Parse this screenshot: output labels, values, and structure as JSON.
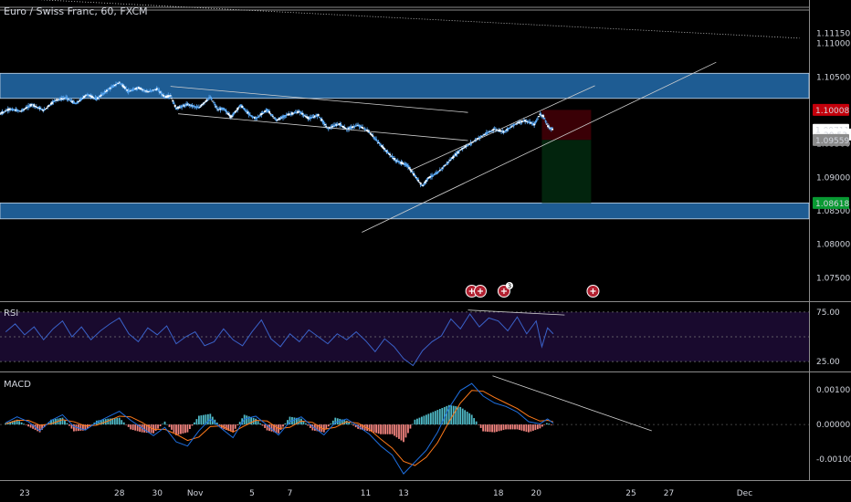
{
  "header": {
    "title": "Euro / Swiss Franc, 60, FXCM"
  },
  "colors": {
    "background": "#000000",
    "zone": "#1e5c93",
    "candle": "#5aa9f5",
    "rsi_line": "#3a62c9",
    "rsi_band": "#190a2e",
    "macd_line": "#1e6fe0",
    "signal_line": "#ff7a1a",
    "hist_pos": "#4fb9c6",
    "hist_neg": "#f0837e",
    "stop_zone": "#3a0006",
    "target_zone": "#02240d",
    "red_tag": "#c4000b",
    "green_tag": "#089932"
  },
  "price_tags": [
    {
      "label": "1.10008",
      "style": "red",
      "price": 1.10008
    },
    {
      "label": "1.09711",
      "style": "white",
      "price": 1.09711
    },
    {
      "label": "20:53",
      "style": "timer",
      "price": 1.0964
    },
    {
      "label": "1.09559",
      "style": "gray",
      "price": 1.09559
    },
    {
      "label": "1.08618",
      "style": "green",
      "price": 1.08618
    }
  ],
  "event_icons": [
    {
      "name": "event-flag-icon-1",
      "x": 19.6,
      "badge": ""
    },
    {
      "name": "event-flag-icon-2",
      "x": 20.05,
      "badge": ""
    },
    {
      "name": "event-flag-icon-3",
      "x": 21.3,
      "badge": "3"
    },
    {
      "name": "event-flag-icon-4",
      "x": 26.0,
      "badge": ""
    }
  ],
  "panes": {
    "rsi_label": "RSI",
    "macd_label": "MACD"
  },
  "chart_data": {
    "type": "candlestick",
    "symbol": "Euro / Swiss Franc",
    "interval": "60",
    "source": "FXCM",
    "price_ylim": [
      1.0715,
      1.1165
    ],
    "price_ticks": [
      "1.11150",
      "1.11000",
      "1.10500",
      "1.09500",
      "1.09000",
      "1.08500",
      "1.08000",
      "1.07500"
    ],
    "rsi_ticks": [
      "75.00",
      "25.00"
    ],
    "rsi_ylim": [
      15,
      85
    ],
    "macd_ticks": [
      "0.00100",
      "0.00000",
      "-0.00100"
    ],
    "macd_ylim": [
      -0.0016,
      0.0015
    ],
    "x_ticks": [
      "23",
      "28",
      "30",
      "Nov",
      "5",
      "7",
      "11",
      "13",
      "18",
      "20",
      "25",
      "27",
      "Dec"
    ],
    "x_tick_positions": [
      -4,
      1,
      3,
      5,
      8,
      10,
      14,
      16,
      21,
      23,
      28,
      30,
      34
    ],
    "x_range": [
      -5.3,
      37.4
    ],
    "resistance_zone": [
      1.1018,
      1.10555
    ],
    "support_zone": [
      1.0838,
      1.08618
    ],
    "position_box": {
      "x_start": 23.3,
      "x_end": 25.9,
      "entry": 1.09559,
      "stop": 1.10008,
      "target": 1.08618
    },
    "rsi_series": [
      [
        -5.0,
        55
      ],
      [
        -4.5,
        63
      ],
      [
        -4.0,
        52
      ],
      [
        -3.5,
        60
      ],
      [
        -3.0,
        47
      ],
      [
        -2.5,
        58
      ],
      [
        -2.0,
        66
      ],
      [
        -1.5,
        50
      ],
      [
        -1.0,
        60
      ],
      [
        -0.5,
        47
      ],
      [
        0.0,
        56
      ],
      [
        0.5,
        63
      ],
      [
        1.0,
        69
      ],
      [
        1.5,
        53
      ],
      [
        2.0,
        45
      ],
      [
        2.5,
        59
      ],
      [
        3.0,
        52
      ],
      [
        3.5,
        61
      ],
      [
        4.0,
        43
      ],
      [
        4.5,
        50
      ],
      [
        5.0,
        55
      ],
      [
        5.5,
        41
      ],
      [
        6.0,
        45
      ],
      [
        6.5,
        58
      ],
      [
        7.0,
        47
      ],
      [
        7.5,
        41
      ],
      [
        8.0,
        55
      ],
      [
        8.5,
        67
      ],
      [
        9.0,
        48
      ],
      [
        9.5,
        40
      ],
      [
        10.0,
        53
      ],
      [
        10.5,
        45
      ],
      [
        11.0,
        57
      ],
      [
        11.5,
        50
      ],
      [
        12.0,
        43
      ],
      [
        12.5,
        53
      ],
      [
        13.0,
        47
      ],
      [
        13.5,
        55
      ],
      [
        14.0,
        46
      ],
      [
        14.5,
        35
      ],
      [
        15.0,
        48
      ],
      [
        15.5,
        40
      ],
      [
        16.0,
        28
      ],
      [
        16.5,
        21
      ],
      [
        17.0,
        36
      ],
      [
        17.5,
        45
      ],
      [
        18.0,
        51
      ],
      [
        18.5,
        68
      ],
      [
        19.0,
        58
      ],
      [
        19.5,
        73
      ],
      [
        20.0,
        60
      ],
      [
        20.5,
        69
      ],
      [
        21.0,
        66
      ],
      [
        21.5,
        56
      ],
      [
        22.0,
        70
      ],
      [
        22.5,
        53
      ],
      [
        23.0,
        66
      ],
      [
        23.3,
        40
      ],
      [
        23.6,
        59
      ],
      [
        23.9,
        53
      ]
    ],
    "macd_series": [
      [
        -5.0,
        5e-05
      ],
      [
        -4.4,
        0.00022
      ],
      [
        -3.8,
        8e-05
      ],
      [
        -3.2,
        -0.00018
      ],
      [
        -2.6,
        0.00012
      ],
      [
        -2.0,
        0.00028
      ],
      [
        -1.4,
        -6e-05
      ],
      [
        -0.8,
        -0.00016
      ],
      [
        -0.2,
        6e-05
      ],
      [
        0.4,
        0.00022
      ],
      [
        1.0,
        0.00038
      ],
      [
        1.6,
        0.00012
      ],
      [
        2.2,
        -0.0001
      ],
      [
        2.8,
        -0.00032
      ],
      [
        3.4,
        -8e-05
      ],
      [
        4.0,
        -0.0005
      ],
      [
        4.6,
        -0.00062
      ],
      [
        5.2,
        -0.00018
      ],
      [
        5.8,
        0.00016
      ],
      [
        6.4,
        -0.00012
      ],
      [
        7.0,
        -0.00038
      ],
      [
        7.6,
        0.00016
      ],
      [
        8.2,
        0.00024
      ],
      [
        8.8,
        -2e-05
      ],
      [
        9.4,
        -0.0003
      ],
      [
        10.0,
        8e-05
      ],
      [
        10.6,
        0.00022
      ],
      [
        11.2,
        -6e-05
      ],
      [
        11.8,
        -0.0003
      ],
      [
        12.4,
        6e-05
      ],
      [
        13.0,
        0.00016
      ],
      [
        13.6,
        -5e-05
      ],
      [
        14.2,
        -0.00028
      ],
      [
        14.8,
        -0.00062
      ],
      [
        15.4,
        -0.00088
      ],
      [
        16.0,
        -0.00142
      ],
      [
        16.6,
        -0.00108
      ],
      [
        17.2,
        -0.00074
      ],
      [
        17.8,
        -0.00022
      ],
      [
        18.4,
        0.00048
      ],
      [
        19.0,
        0.00098
      ],
      [
        19.6,
        0.00118
      ],
      [
        20.2,
        0.00082
      ],
      [
        20.8,
        0.00062
      ],
      [
        21.4,
        0.00052
      ],
      [
        22.0,
        0.00036
      ],
      [
        22.6,
        8e-05
      ],
      [
        23.2,
        2e-05
      ],
      [
        23.6,
        0.00016
      ],
      [
        23.9,
        4e-05
      ]
    ],
    "signal_series": [
      [
        -5.0,
        2e-05
      ],
      [
        -4.4,
        0.00012
      ],
      [
        -3.8,
        0.00012
      ],
      [
        -3.2,
        -2e-05
      ],
      [
        -2.6,
        2e-05
      ],
      [
        -2.0,
        0.00014
      ],
      [
        -1.4,
        8e-05
      ],
      [
        -0.8,
        -4e-05
      ],
      [
        -0.2,
        -2e-05
      ],
      [
        0.4,
        0.0001
      ],
      [
        1.0,
        0.00024
      ],
      [
        1.6,
        0.00022
      ],
      [
        2.2,
        6e-05
      ],
      [
        2.8,
        -0.00014
      ],
      [
        3.4,
        -0.00014
      ],
      [
        4.0,
        -0.00028
      ],
      [
        4.6,
        -0.00046
      ],
      [
        5.2,
        -0.00036
      ],
      [
        5.8,
        -6e-05
      ],
      [
        6.4,
        -4e-05
      ],
      [
        7.0,
        -0.00022
      ],
      [
        7.6,
        -4e-05
      ],
      [
        8.2,
        0.00012
      ],
      [
        8.8,
        0.0001
      ],
      [
        9.4,
        -0.00012
      ],
      [
        10.0,
        -8e-05
      ],
      [
        10.6,
        0.0001
      ],
      [
        11.2,
        6e-05
      ],
      [
        11.8,
        -0.00014
      ],
      [
        12.4,
        -8e-05
      ],
      [
        13.0,
        8e-05
      ],
      [
        13.6,
        4e-05
      ],
      [
        14.2,
        -0.00014
      ],
      [
        14.8,
        -0.00042
      ],
      [
        15.4,
        -0.00068
      ],
      [
        16.0,
        -0.00106
      ],
      [
        16.6,
        -0.00118
      ],
      [
        17.2,
        -0.00094
      ],
      [
        17.8,
        -0.00052
      ],
      [
        18.4,
        8e-05
      ],
      [
        19.0,
        0.00062
      ],
      [
        19.6,
        0.00098
      ],
      [
        20.2,
        0.00096
      ],
      [
        20.8,
        0.00078
      ],
      [
        21.4,
        0.00062
      ],
      [
        22.0,
        0.00046
      ],
      [
        22.6,
        0.00024
      ],
      [
        23.2,
        0.0001
      ],
      [
        23.6,
        0.00012
      ],
      [
        23.9,
        8e-05
      ]
    ],
    "price_path": [
      [
        -5.3,
        1.0995
      ],
      [
        -4.8,
        1.1002
      ],
      [
        -4.2,
        1.0999
      ],
      [
        -3.6,
        1.1009
      ],
      [
        -3.0,
        1.1
      ],
      [
        -2.4,
        1.1015
      ],
      [
        -1.8,
        1.1019
      ],
      [
        -1.3,
        1.101
      ],
      [
        -0.7,
        1.1024
      ],
      [
        -0.2,
        1.1017
      ],
      [
        0.4,
        1.1031
      ],
      [
        1.0,
        1.1042
      ],
      [
        1.5,
        1.1028
      ],
      [
        2.0,
        1.1034
      ],
      [
        2.5,
        1.1028
      ],
      [
        3.0,
        1.1032
      ],
      [
        3.4,
        1.102
      ],
      [
        3.7,
        1.1022
      ],
      [
        4.0,
        1.1003
      ],
      [
        4.6,
        1.1009
      ],
      [
        5.2,
        1.1004
      ],
      [
        5.8,
        1.102
      ],
      [
        6.2,
        1.1001
      ],
      [
        6.5,
        1.1003
      ],
      [
        6.9,
        1.099
      ],
      [
        7.4,
        1.1008
      ],
      [
        7.9,
        1.0993
      ],
      [
        8.2,
        1.0988
      ],
      [
        8.8,
        1.1001
      ],
      [
        9.3,
        1.0985
      ],
      [
        9.8,
        1.0993
      ],
      [
        10.5,
        1.0998
      ],
      [
        11.0,
        1.0988
      ],
      [
        11.5,
        1.0993
      ],
      [
        12.0,
        1.0973
      ],
      [
        12.6,
        1.098
      ],
      [
        13.0,
        1.0972
      ],
      [
        13.6,
        1.0978
      ],
      [
        14.1,
        1.097
      ],
      [
        14.5,
        1.0958
      ],
      [
        15.0,
        1.0942
      ],
      [
        15.6,
        1.0925
      ],
      [
        16.2,
        1.0918
      ],
      [
        16.6,
        1.0902
      ],
      [
        17.0,
        1.0887
      ],
      [
        17.3,
        1.0899
      ],
      [
        17.8,
        1.0907
      ],
      [
        18.4,
        1.0924
      ],
      [
        19.0,
        1.0941
      ],
      [
        19.6,
        1.0952
      ],
      [
        20.2,
        1.0963
      ],
      [
        20.8,
        1.0972
      ],
      [
        21.3,
        1.0968
      ],
      [
        21.9,
        1.098
      ],
      [
        22.4,
        1.0985
      ],
      [
        22.9,
        1.0979
      ],
      [
        23.2,
        1.0994
      ],
      [
        23.4,
        1.0991
      ],
      [
        23.6,
        1.0977
      ],
      [
        23.9,
        1.0971
      ]
    ],
    "trend_lines": [
      {
        "pane": "price",
        "from": [
          -5.0,
          1.1168
        ],
        "to": [
          36.9,
          1.1108
        ],
        "style": "dotted"
      },
      {
        "pane": "price",
        "from": [
          3.7,
          1.1036
        ],
        "to": [
          19.4,
          1.0997
        ],
        "style": "solid"
      },
      {
        "pane": "price",
        "from": [
          4.1,
          1.0995
        ],
        "to": [
          19.4,
          1.0955
        ],
        "style": "solid"
      },
      {
        "pane": "price",
        "from": [
          16.4,
          1.0911
        ],
        "to": [
          26.1,
          1.1037
        ],
        "style": "solid"
      },
      {
        "pane": "price",
        "from": [
          13.8,
          1.0818
        ],
        "to": [
          32.5,
          1.1072
        ],
        "style": "solid"
      },
      {
        "pane": "rsi",
        "from": [
          19.4,
          77
        ],
        "to": [
          24.5,
          72
        ],
        "style": "solid"
      },
      {
        "pane": "macd",
        "from": [
          20.7,
          0.0014
        ],
        "to": [
          29.1,
          -0.00018
        ],
        "style": "solid"
      }
    ]
  }
}
